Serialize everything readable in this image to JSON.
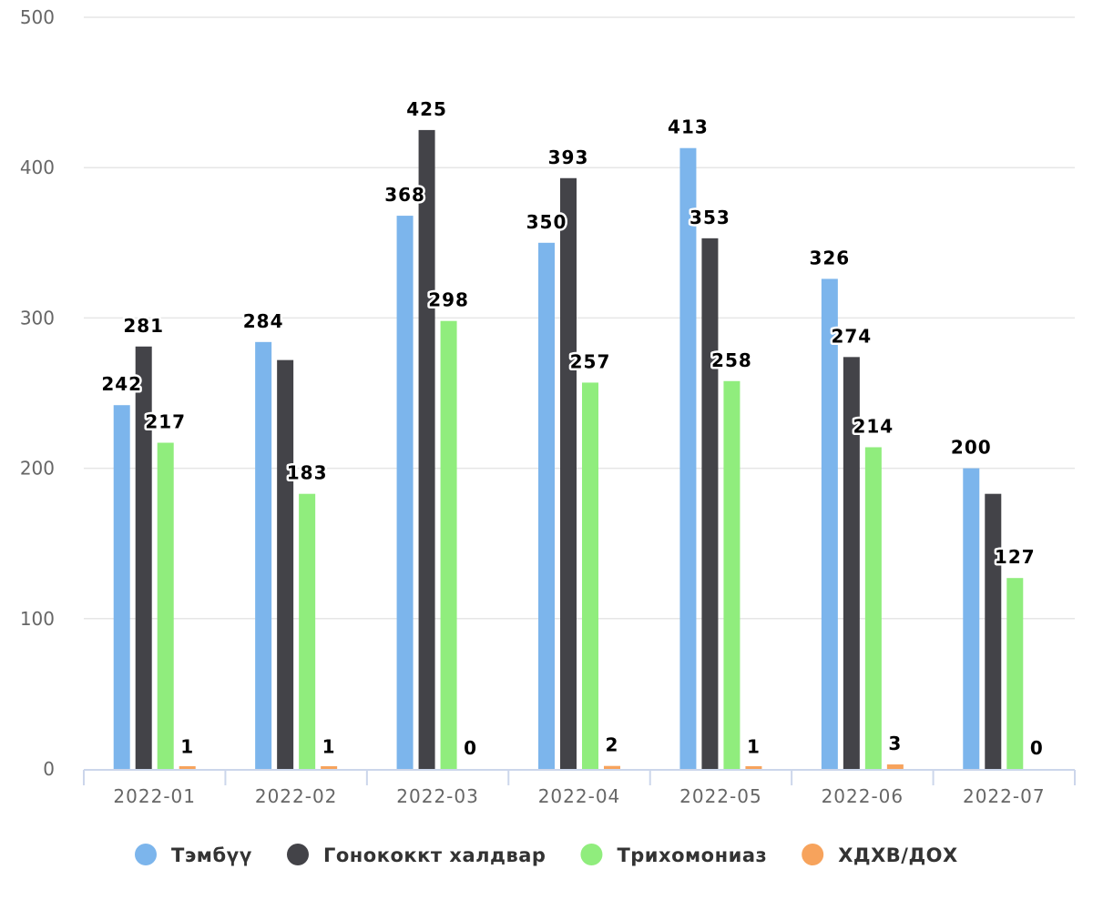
{
  "chart_data": {
    "type": "bar",
    "categories": [
      "2022-01",
      "2022-02",
      "2022-03",
      "2022-04",
      "2022-05",
      "2022-06",
      "2022-07"
    ],
    "series": [
      {
        "name": "Тэмбүү",
        "color": "#7cb5ec",
        "values": [
          242,
          284,
          368,
          350,
          413,
          326,
          200
        ],
        "labels": [
          "242",
          "284",
          "368",
          "350",
          "413",
          "326",
          "200"
        ]
      },
      {
        "name": "Гонококкт халдвар",
        "color": "#434348",
        "values": [
          281,
          272,
          425,
          393,
          353,
          274,
          183
        ],
        "labels": [
          "281",
          "",
          "425",
          "393",
          "353",
          "274",
          ""
        ]
      },
      {
        "name": "Трихомониаз",
        "color": "#90ed7d",
        "values": [
          217,
          183,
          298,
          257,
          258,
          214,
          127
        ],
        "labels": [
          "217",
          "183",
          "298",
          "257",
          "258",
          "214",
          "127"
        ]
      },
      {
        "name": "ХДХВ/ДОХ",
        "color": "#f7a35c",
        "values": [
          1,
          1,
          0,
          2,
          1,
          3,
          0
        ],
        "labels": [
          "1",
          "1",
          "0",
          "2",
          "1",
          "3",
          "0"
        ]
      }
    ],
    "y_ticks": [
      "0",
      "100",
      "200",
      "300",
      "400",
      "500"
    ],
    "ylim": [
      0,
      500
    ],
    "grid": true,
    "legend_position": "bottom-center"
  }
}
